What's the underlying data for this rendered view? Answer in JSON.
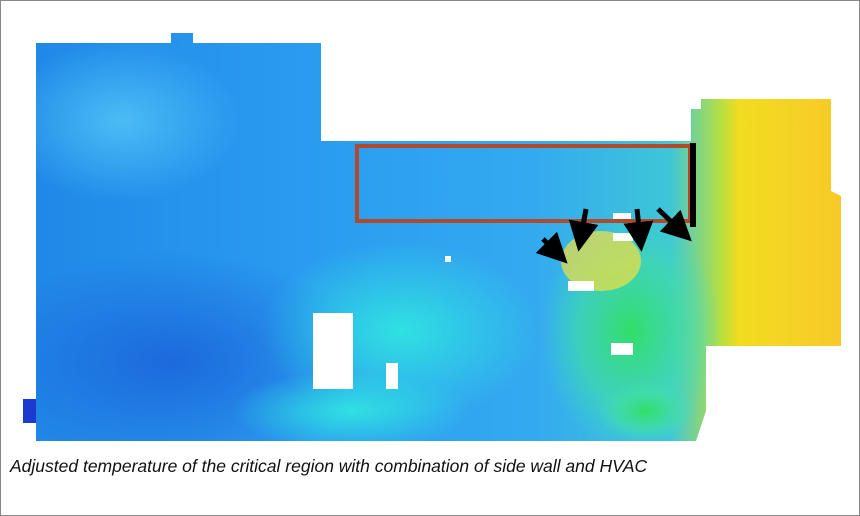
{
  "caption": "Adjusted temperature of the critical region with combination of side wall and HVAC"
}
